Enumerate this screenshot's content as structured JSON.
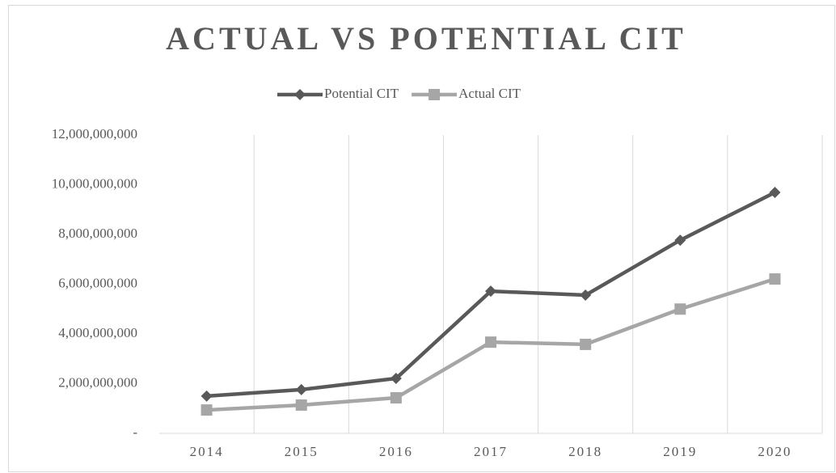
{
  "chart_data": {
    "type": "line",
    "title": "ACTUAL VS POTENTIAL CIT",
    "categories": [
      "2014",
      "2015",
      "2016",
      "2017",
      "2018",
      "2019",
      "2020"
    ],
    "series": [
      {
        "name": "Potential CIT",
        "color": "#595959",
        "marker": "diamond",
        "values": [
          1500000000,
          1760000000,
          2210000000,
          5720000000,
          5560000000,
          7770000000,
          9690000000
        ]
      },
      {
        "name": "Actual CIT",
        "color": "#a6a6a6",
        "marker": "square",
        "values": [
          940000000,
          1140000000,
          1430000000,
          3670000000,
          3580000000,
          5000000000,
          6210000000
        ]
      }
    ],
    "ylim": [
      0,
      12000000000
    ],
    "yticks": [
      {
        "value": 0,
        "label": "-"
      },
      {
        "value": 2000000000,
        "label": "2,000,000,000"
      },
      {
        "value": 4000000000,
        "label": "4,000,000,000"
      },
      {
        "value": 6000000000,
        "label": "6,000,000,000"
      },
      {
        "value": 8000000000,
        "label": "8,000,000,000"
      },
      {
        "value": 10000000000,
        "label": "10,000,000,000"
      },
      {
        "value": 12000000000,
        "label": "12,000,000,000"
      }
    ],
    "grid": "x",
    "legend": "top"
  }
}
